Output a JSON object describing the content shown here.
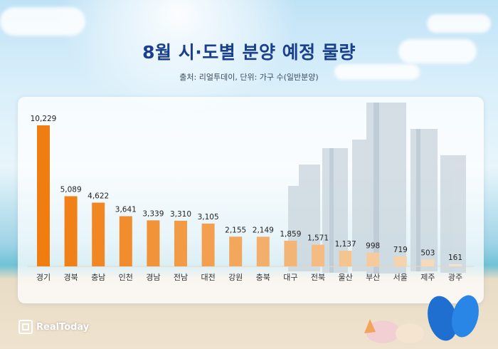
{
  "header": {
    "title": "8월 시·도별 분양 예정 물량",
    "subtitle": "출처: 리얼투데이, 단위: 가구 수(일반분양)"
  },
  "brand": {
    "logo_text": "RealToday"
  },
  "colors": {
    "bar_top": "#f07d10",
    "bar_bottom": "#f6e2c8",
    "title": "#1a3f8c"
  },
  "chart_data": {
    "type": "bar",
    "title": "8월 시·도별 분양 예정 물량",
    "categories": [
      "경기",
      "경북",
      "충남",
      "인천",
      "경남",
      "전남",
      "대전",
      "강원",
      "충북",
      "대구",
      "전북",
      "울산",
      "부산",
      "서울",
      "제주",
      "광주"
    ],
    "values": [
      10229,
      5089,
      4622,
      3641,
      3339,
      3310,
      3105,
      2155,
      2149,
      1859,
      1571,
      1137,
      998,
      719,
      503,
      161
    ],
    "value_labels": [
      "10,229",
      "5,089",
      "4,622",
      "3,641",
      "3,339",
      "3,310",
      "3,105",
      "2,155",
      "2,149",
      "1,859",
      "1,571",
      "1,137",
      "998",
      "719",
      "503",
      "161"
    ],
    "ylim": [
      0,
      10229
    ],
    "grid": false,
    "legend": "none"
  }
}
